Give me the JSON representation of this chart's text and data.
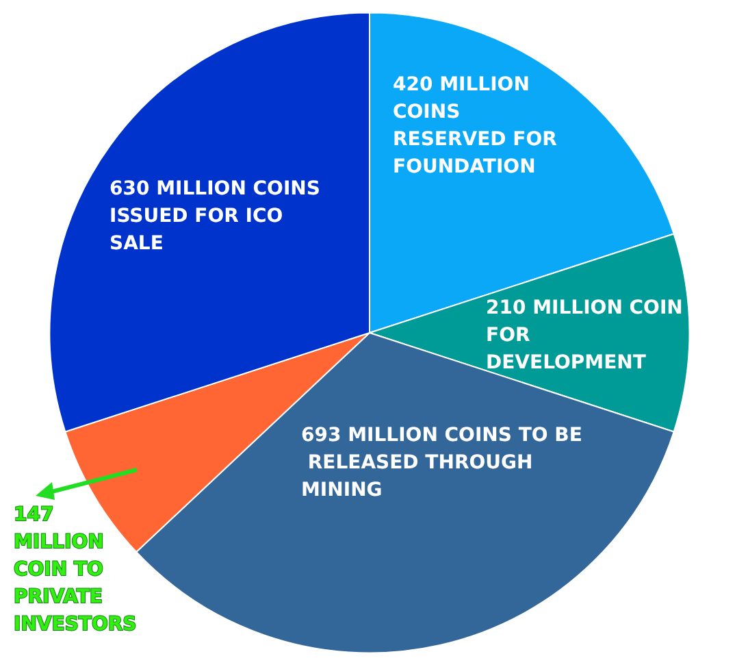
{
  "chart_data": {
    "type": "pie",
    "categories": [
      "420 MILLION COINS RESERVED FOR FOUNDATION",
      "210 MILLION COIN FOR DEVELOPMENT",
      "693 MILLION COINS TO BE RELEASED THROUGH MINING",
      "147 MILLION COIN TO PRIVATE INVESTORS",
      "630 MILLION COINS ISSUED FOR ICO SALE"
    ],
    "values": [
      420,
      210,
      693,
      147,
      630
    ],
    "colors": [
      "#0aa8f7",
      "#009b96",
      "#336699",
      "#ff6633",
      "#0033cc"
    ],
    "legend": false
  }
}
